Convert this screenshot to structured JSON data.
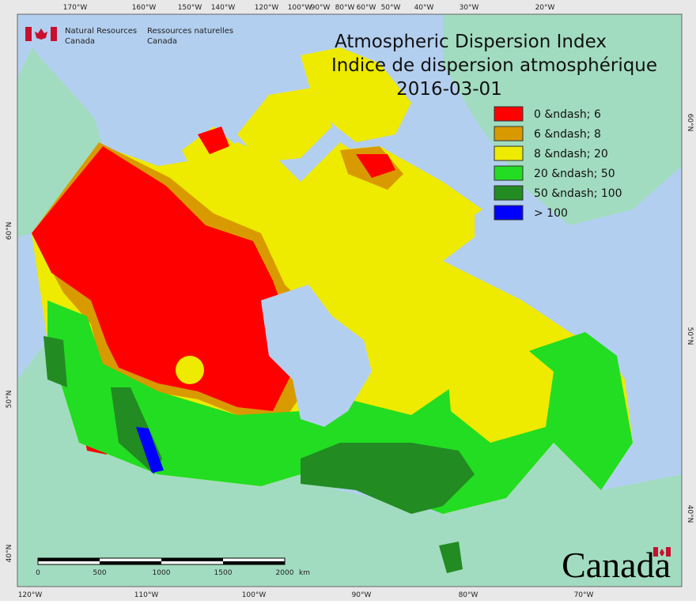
{
  "header": {
    "agency_en": [
      "Natural Resources",
      "Canada"
    ],
    "agency_fr": [
      "Ressources naturelles",
      "Canada"
    ],
    "title_en": "Atmospheric Dispersion Index",
    "title_fr": "Indice de dispersion atmosphérique",
    "date": "2016-03-01"
  },
  "legend": [
    {
      "label": "0 &ndash; 6",
      "color": "#ff0000"
    },
    {
      "label": "6 &ndash; 8",
      "color": "#d99a00"
    },
    {
      "label": "8 &ndash; 20",
      "color": "#eeea00"
    },
    {
      "label": "20 &ndash; 50",
      "color": "#22dd22"
    },
    {
      "label": "50 &ndash; 100",
      "color": "#228b22"
    },
    {
      "label": "> 100",
      "color": "#0000ff"
    }
  ],
  "graticule": {
    "top": [
      "170°W",
      "160°W",
      "150°W",
      "140°W",
      "120°W",
      "100°W",
      "90°W",
      "80°W",
      "60°W",
      "50°W",
      "40°W",
      "30°W",
      "20°W"
    ],
    "bottom": [
      "120°W",
      "110°W",
      "100°W",
      "90°W",
      "80°W",
      "70°W"
    ],
    "left": [
      "60°N",
      "50°N",
      "40°N"
    ],
    "right": [
      "60°N",
      "50°N",
      "40°N"
    ]
  },
  "scale_bar": {
    "labels": [
      "0",
      "500",
      "1000",
      "1500",
      "2000"
    ],
    "unit": "km"
  },
  "wordmark": "Canada"
}
